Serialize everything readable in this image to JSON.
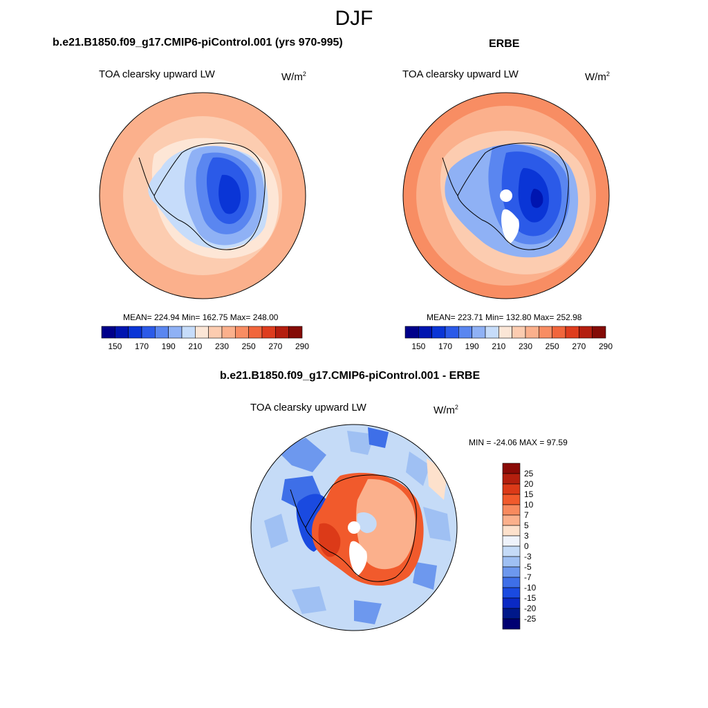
{
  "figure": {
    "title": "DJF"
  },
  "panels": {
    "model": {
      "title": "b.e21.B1850.f09_g17.CMIP6-piControl.001 (yrs 970-995)",
      "variable": "TOA clearsky upward LW",
      "units": "W/m",
      "units_exponent": "2",
      "stats": "MEAN= 224.94  Min= 162.75  Max= 248.00"
    },
    "obs": {
      "title": "ERBE",
      "variable": "TOA clearsky upward LW",
      "units": "W/m",
      "units_exponent": "2",
      "stats": "MEAN= 223.71  Min= 132.80  Max= 252.98"
    },
    "diff": {
      "title": "b.e21.B1850.f09_g17.CMIP6-piControl.001 - ERBE",
      "variable": "TOA clearsky upward LW",
      "units": "W/m",
      "units_exponent": "2",
      "stats": "MIN = -24.06 MAX =  97.59"
    }
  },
  "colorbar_abs": {
    "colors": [
      "#00008a",
      "#0015b0",
      "#0a35d6",
      "#2b5ae8",
      "#5a86f0",
      "#8fb1f5",
      "#c6dcfa",
      "#fbe6d6",
      "#fcccb0",
      "#fbb08c",
      "#f88d63",
      "#f1663c",
      "#de3d1e",
      "#b41e0f",
      "#840b06"
    ],
    "labels": [
      "150",
      "170",
      "190",
      "210",
      "230",
      "250",
      "270",
      "290"
    ]
  },
  "colorbar_diff": {
    "colors": [
      "#8a0a06",
      "#b41f0e",
      "#dc3a18",
      "#f15a2c",
      "#f88a5e",
      "#fbb08c",
      "#fde1cc",
      "#eff3fb",
      "#c5dbf7",
      "#9fc0f3",
      "#6d98ee",
      "#3e6fe8",
      "#1a4ae0",
      "#0a29c4",
      "#00188a",
      "#000072"
    ],
    "labels": [
      "25",
      "20",
      "15",
      "10",
      "7",
      "5",
      "3",
      "0",
      "-3",
      "-5",
      "-7",
      "-10",
      "-15",
      "-20",
      "-25"
    ]
  }
}
